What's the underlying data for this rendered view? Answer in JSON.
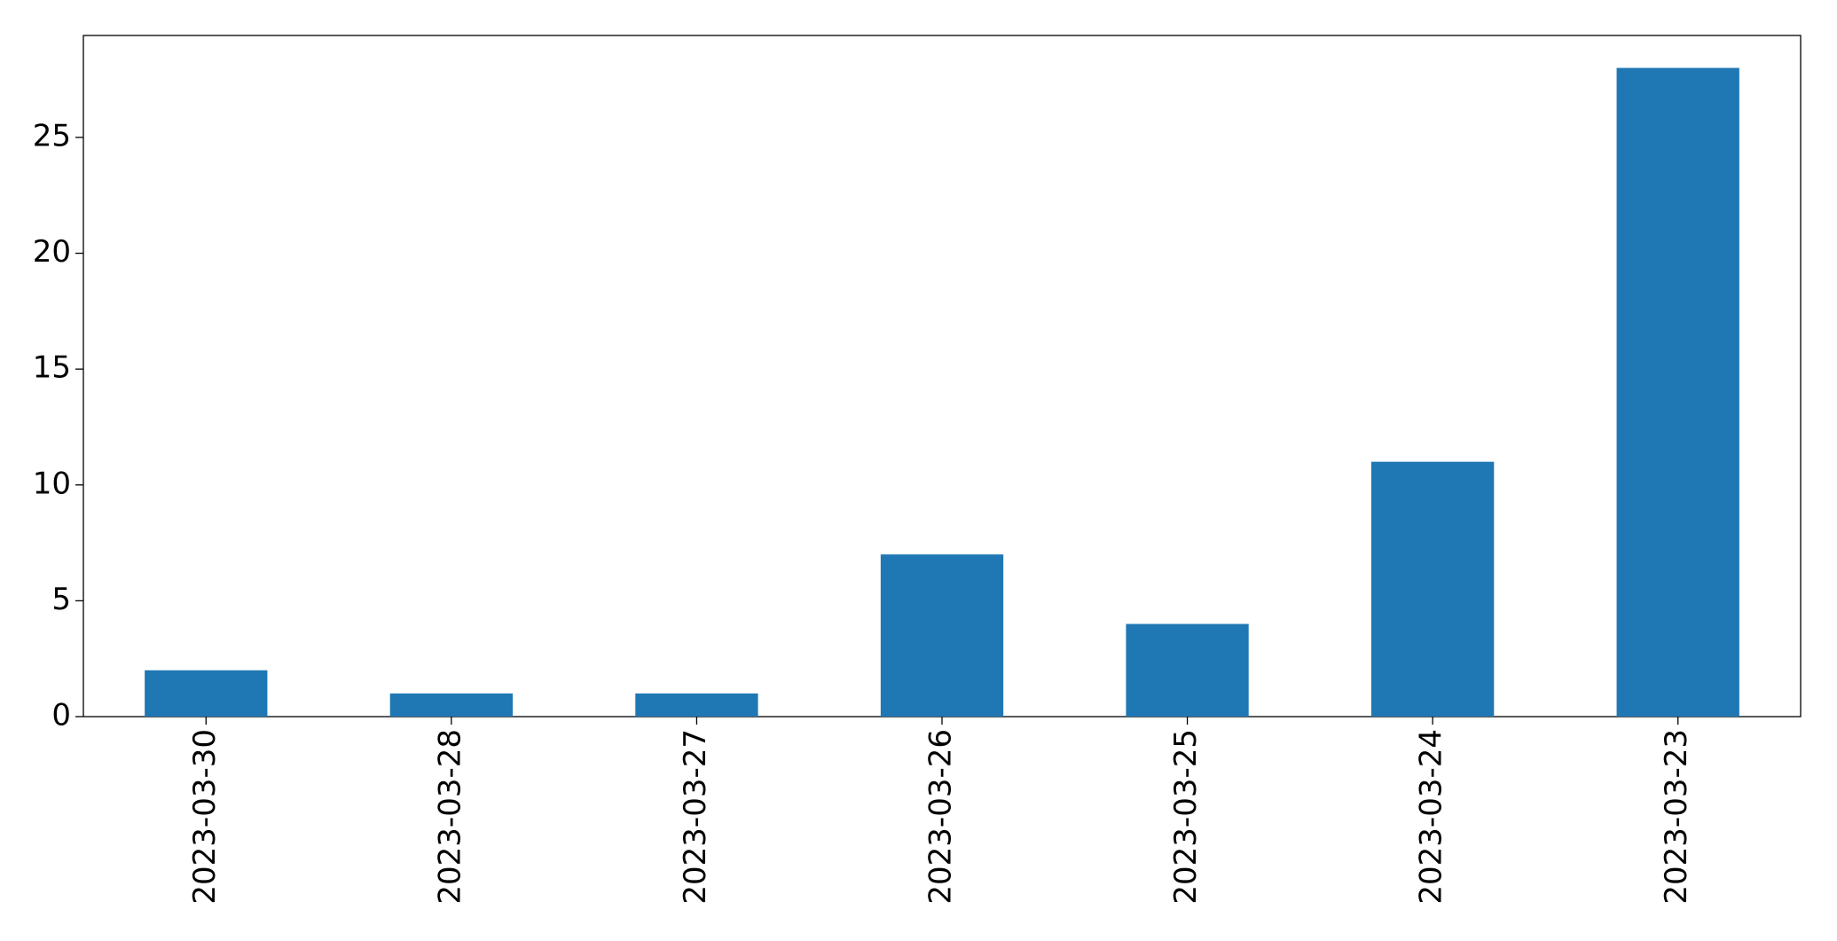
{
  "chart_data": {
    "type": "bar",
    "categories": [
      "2023-03-30",
      "2023-03-28",
      "2023-03-27",
      "2023-03-26",
      "2023-03-25",
      "2023-03-24",
      "2023-03-23"
    ],
    "values": [
      2,
      1,
      1,
      7,
      4,
      11,
      28
    ],
    "color": "#1f77b4",
    "ylim": [
      0,
      29.4
    ],
    "yticks": [
      0,
      5,
      10,
      15,
      20,
      25
    ],
    "grid": false
  }
}
